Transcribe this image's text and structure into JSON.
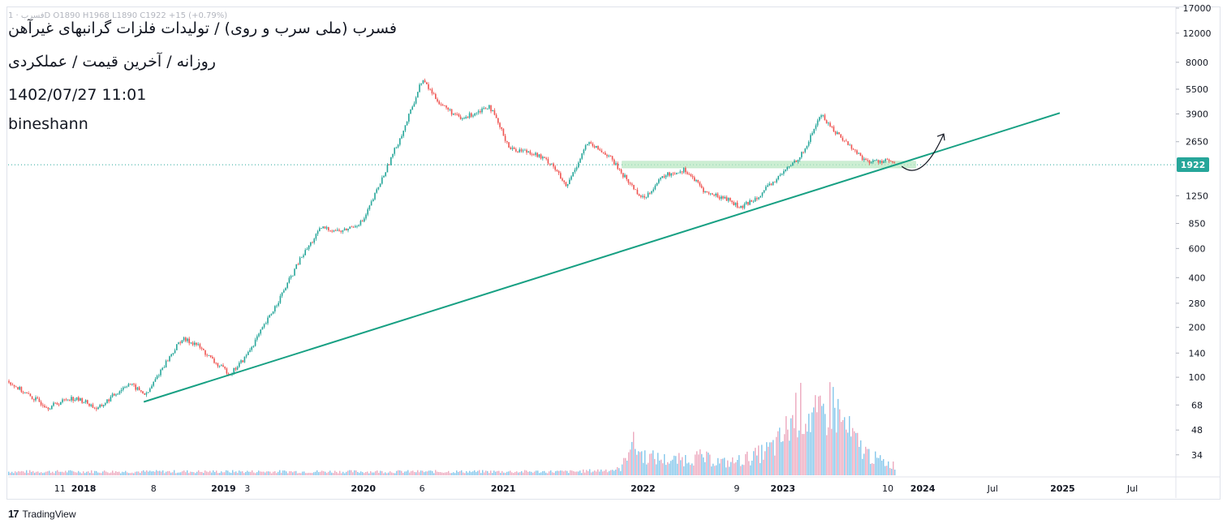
{
  "title_lines": [
    "فسرب (ملی سرب و روی) / تولیدات فلزات گرانبهای غیرآهن",
    "روزانه / آخرین قیمت / عملکردی",
    "1402/07/27 11:01",
    "bineshann"
  ],
  "ohlc_text": "فسرب · 1D  O1890  H1968  L1890  C1922  +15 (+0.79%)",
  "brand": "TradingView",
  "last_price_label": "1922",
  "colors": {
    "up": "#26a69a",
    "down": "#ef5350",
    "trendline": "#17a083",
    "zone_fill": "#b7e8c0",
    "volume": "#6fbde8",
    "price_badge": "#26a69a",
    "grid": "#e0e3eb"
  },
  "chart_data": {
    "type": "candlestick",
    "symbol": "فسرب",
    "timeframe": "روزانه",
    "y_scale": "log",
    "ylim": [
      25,
      17000
    ],
    "y_ticks": [
      17000,
      12000,
      8000,
      5500,
      3900,
      2650,
      1250,
      850,
      600,
      400,
      280,
      200,
      140,
      100,
      68,
      48,
      34
    ],
    "x_ticks": [
      "11",
      "2018",
      "8",
      "2019",
      "3",
      "2020",
      "6",
      "2021",
      "2022",
      "9",
      "2023",
      "10",
      "2024",
      "Jul",
      "2025",
      "Jul"
    ],
    "x_tick_dates": [
      2017.83,
      2018.0,
      2018.5,
      2019.0,
      2019.17,
      2020.0,
      2020.42,
      2021.0,
      2022.0,
      2022.67,
      2023.0,
      2023.75,
      2024.0,
      2024.5,
      2025.0,
      2025.5
    ],
    "xlim": [
      2017.46,
      2025.81
    ],
    "last_price": 1922,
    "price_path": [
      [
        2017.46,
        95
      ],
      [
        2017.6,
        78
      ],
      [
        2017.75,
        66
      ],
      [
        2017.9,
        75
      ],
      [
        2018.0,
        72
      ],
      [
        2018.1,
        64
      ],
      [
        2018.2,
        76
      ],
      [
        2018.32,
        92
      ],
      [
        2018.45,
        78
      ],
      [
        2018.55,
        110
      ],
      [
        2018.7,
        170
      ],
      [
        2018.8,
        160
      ],
      [
        2018.95,
        120
      ],
      [
        2019.05,
        105
      ],
      [
        2019.15,
        130
      ],
      [
        2019.3,
        210
      ],
      [
        2019.42,
        320
      ],
      [
        2019.55,
        520
      ],
      [
        2019.7,
        800
      ],
      [
        2019.85,
        760
      ],
      [
        2020.0,
        880
      ],
      [
        2020.15,
        1700
      ],
      [
        2020.3,
        3300
      ],
      [
        2020.42,
        6300
      ],
      [
        2020.55,
        4500
      ],
      [
        2020.7,
        3600
      ],
      [
        2020.9,
        4400
      ],
      [
        2021.05,
        2400
      ],
      [
        2021.2,
        2300
      ],
      [
        2021.35,
        1950
      ],
      [
        2021.45,
        1400
      ],
      [
        2021.6,
        2600
      ],
      [
        2021.75,
        2200
      ],
      [
        2021.9,
        1500
      ],
      [
        2022.0,
        1200
      ],
      [
        2022.15,
        1650
      ],
      [
        2022.3,
        1800
      ],
      [
        2022.45,
        1300
      ],
      [
        2022.6,
        1200
      ],
      [
        2022.7,
        1050
      ],
      [
        2022.85,
        1300
      ],
      [
        2022.98,
        1650
      ],
      [
        2023.15,
        2300
      ],
      [
        2023.27,
        3900
      ],
      [
        2023.35,
        3200
      ],
      [
        2023.5,
        2400
      ],
      [
        2023.6,
        2000
      ],
      [
        2023.75,
        2050
      ],
      [
        2023.8,
        1922
      ]
    ],
    "volume_path": [
      [
        2017.46,
        3
      ],
      [
        2018.0,
        3
      ],
      [
        2018.6,
        3
      ],
      [
        2019.5,
        3
      ],
      [
        2020.5,
        3
      ],
      [
        2021.5,
        3
      ],
      [
        2021.83,
        5
      ],
      [
        2021.9,
        30
      ],
      [
        2022.0,
        16
      ],
      [
        2022.2,
        12
      ],
      [
        2022.4,
        15
      ],
      [
        2022.6,
        10
      ],
      [
        2022.8,
        16
      ],
      [
        2022.95,
        25
      ],
      [
        2023.1,
        55
      ],
      [
        2023.25,
        45
      ],
      [
        2023.35,
        60
      ],
      [
        2023.5,
        30
      ],
      [
        2023.65,
        14
      ],
      [
        2023.8,
        8
      ]
    ],
    "volume_max": 100,
    "trendline": [
      [
        2018.43,
        71
      ],
      [
        2024.98,
        3950
      ]
    ],
    "support_zone": {
      "x": [
        2021.85,
        2023.95
      ],
      "y": [
        1840,
        2020
      ]
    },
    "projection_arrow": [
      [
        2023.85,
        1880
      ],
      [
        2024.15,
        2950
      ]
    ]
  }
}
